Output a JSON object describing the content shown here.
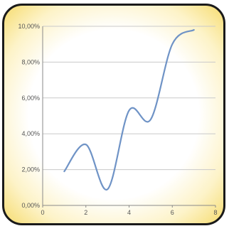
{
  "chart_data": {
    "type": "line",
    "title": "",
    "xlabel": "",
    "ylabel": "",
    "xlim": [
      0,
      8
    ],
    "ylim": [
      0,
      0.1
    ],
    "x_ticks": [
      "0",
      "2",
      "4",
      "6",
      "8"
    ],
    "y_ticks": [
      "0,00%",
      "2,00%",
      "4,00%",
      "6,00%",
      "8,00%",
      "10,00%"
    ],
    "grid": "horizontal",
    "legend": "none",
    "series": [
      {
        "color": "#6f93c6",
        "x": [
          1,
          2,
          3,
          4,
          5,
          6,
          7
        ],
        "y": [
          0.019,
          0.034,
          0.009,
          0.053,
          0.048,
          0.09,
          0.098
        ]
      }
    ]
  }
}
